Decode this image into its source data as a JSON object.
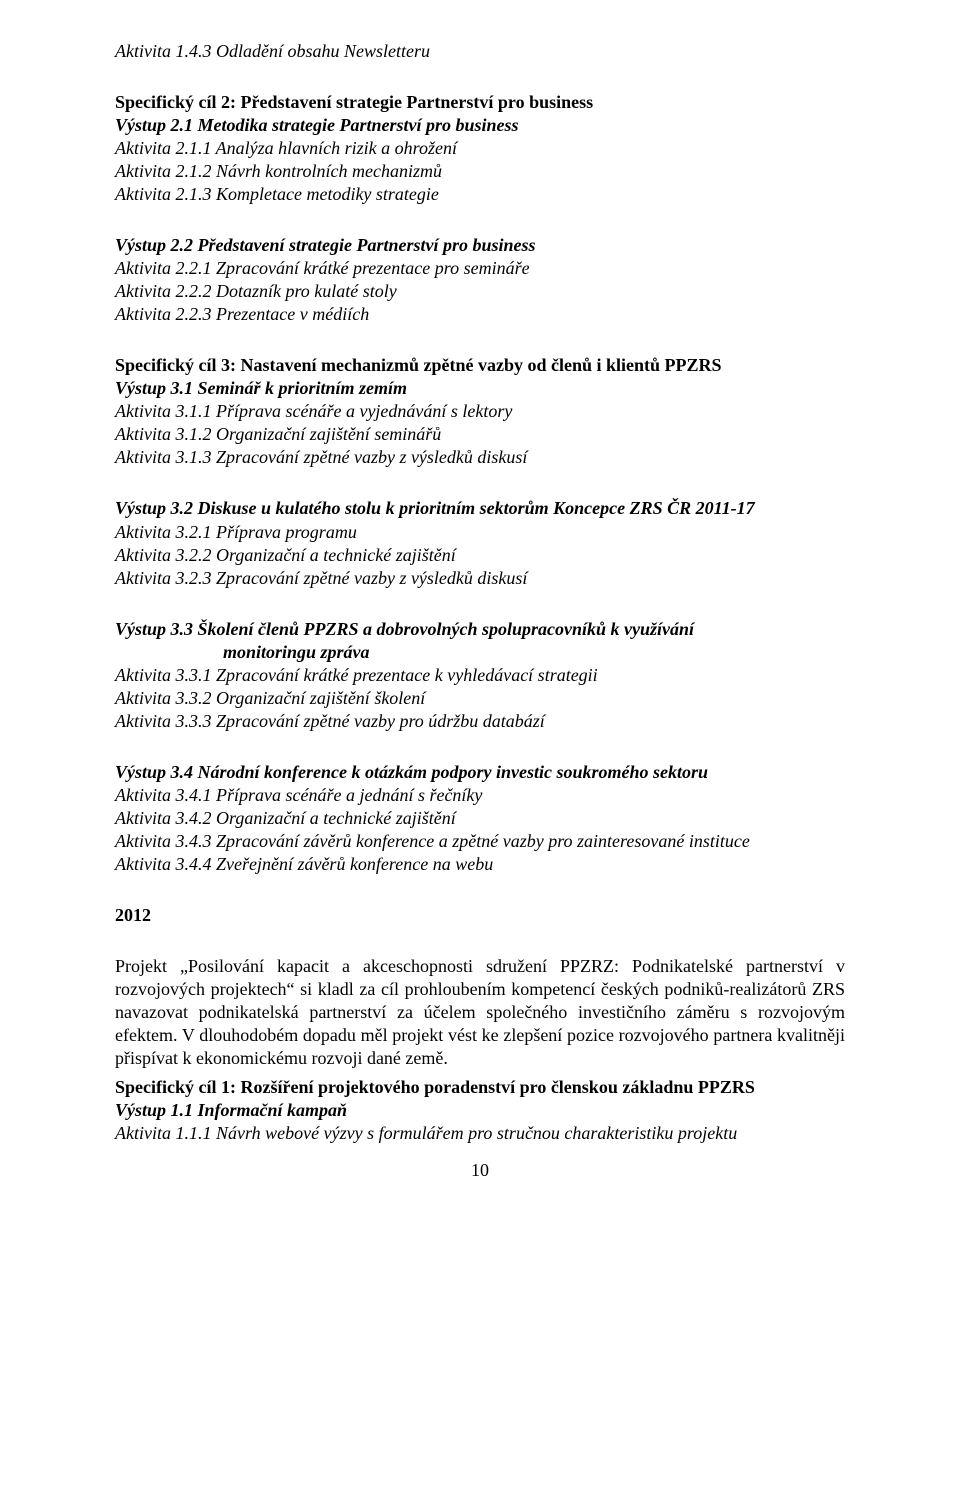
{
  "blocks": [
    {
      "lines": [
        {
          "cls": "italic",
          "text": "Aktivita 1.4.3 Odladění obsahu Newsletteru"
        }
      ]
    },
    {
      "lines": [
        {
          "cls": "bold",
          "text": "Specifický cíl 2: Představení strategie Partnerství pro business"
        },
        {
          "cls": "bold-italic",
          "text": "Výstup 2.1 Metodika strategie Partnerství pro business"
        },
        {
          "cls": "italic",
          "text": "Aktivita 2.1.1 Analýza hlavních rizik a ohrožení"
        },
        {
          "cls": "italic",
          "text": "Aktivita 2.1.2 Návrh kontrolních mechanizmů"
        },
        {
          "cls": "italic",
          "text": "Aktivita 2.1.3 Kompletace metodiky strategie"
        }
      ]
    },
    {
      "lines": [
        {
          "cls": "bold-italic",
          "text": "Výstup 2.2 Představení strategie Partnerství pro business"
        },
        {
          "cls": "italic",
          "text": "Aktivita 2.2.1 Zpracování krátké prezentace pro semináře"
        },
        {
          "cls": "italic",
          "text": "Aktivita 2.2.2 Dotazník pro kulaté stoly"
        },
        {
          "cls": "italic",
          "text": "Aktivita 2.2.3 Prezentace v médiích"
        }
      ]
    },
    {
      "lines": [
        {
          "cls": "bold",
          "text": "Specifický cíl 3: Nastavení mechanizmů zpětné vazby od členů i klientů PPZRS"
        },
        {
          "cls": "bold-italic",
          "text": "Výstup 3.1 Seminář k prioritním zemím"
        },
        {
          "cls": "italic",
          "text": "Aktivita 3.1.1 Příprava scénáře a vyjednávání s lektory"
        },
        {
          "cls": "italic",
          "text": "Aktivita 3.1.2 Organizační zajištění seminářů"
        },
        {
          "cls": "italic",
          "text": "Aktivita 3.1.3 Zpracování zpětné vazby z výsledků diskusí"
        }
      ]
    },
    {
      "lines": [
        {
          "cls": "bold-italic",
          "text": "Výstup 3.2 Diskuse u kulatého stolu k prioritním sektorům Koncepce ZRS ČR 2011-17"
        },
        {
          "cls": "italic",
          "text": "Aktivita 3.2.1 Příprava programu"
        },
        {
          "cls": "italic",
          "text": "Aktivita 3.2.2 Organizační a technické zajištění"
        },
        {
          "cls": "italic",
          "text": "Aktivita 3.2.3 Zpracování zpětné vazby z výsledků diskusí"
        }
      ]
    },
    {
      "lines": [
        {
          "cls": "bold-italic justify",
          "text": "Výstup 3.3 Školení členů PPZRS a dobrovolných spolupracovníků k využívání"
        },
        {
          "cls": "bold-italic pad-left",
          "text": "monitoringu zpráva"
        },
        {
          "cls": "italic",
          "text": "Aktivita 3.3.1 Zpracování krátké prezentace k vyhledávací strategii"
        },
        {
          "cls": "italic",
          "text": "Aktivita 3.3.2 Organizační zajištění školení"
        },
        {
          "cls": "italic",
          "text": "Aktivita 3.3.3 Zpracování zpětné vazby pro údržbu databází"
        }
      ]
    },
    {
      "lines": [
        {
          "cls": "bold-italic",
          "text": "Výstup 3.4 Národní konference k otázkám podpory investic soukromého sektoru"
        },
        {
          "cls": "italic",
          "text": "Aktivita 3.4.1 Příprava scénáře a jednání s řečníky"
        },
        {
          "cls": "italic",
          "text": "Aktivita 3.4.2 Organizační a technické zajištění"
        },
        {
          "cls": "italic",
          "text": "Aktivita 3.4.3 Zpracování závěrů konference a zpětné vazby pro zainteresované instituce"
        },
        {
          "cls": "italic",
          "text": "Aktivita 3.4.4 Zveřejnění závěrů konference na webu"
        }
      ]
    },
    {
      "lines": [
        {
          "cls": "bold",
          "text": "2012"
        }
      ]
    }
  ],
  "paragraph_2012": "Projekt „Posilování kapacit a akceschopnosti sdružení PPZRZ: Podnikatelské partnerství v rozvojových projektech“ si kladl za cíl prohloubením kompetencí českých podniků-realizátorů ZRS navazovat podnikatelská partnerství za účelem společného investičního záměru s rozvojovým efektem. V dlouhodobém dopadu měl projekt vést ke zlepšení pozice rozvojového partnera kvalitněji přispívat k ekonomickému rozvoji dané země.",
  "final_block": {
    "lines": [
      {
        "cls": "bold",
        "text": "Specifický cíl 1: Rozšíření projektového poradenství pro členskou základnu PPZRS"
      },
      {
        "cls": "bold-italic",
        "text": "Výstup 1.1 Informační kampaň"
      },
      {
        "cls": "italic",
        "text": "Aktivita 1.1.1 Návrh webové výzvy s formulářem pro stručnou charakteristiku projektu"
      }
    ]
  },
  "page_number": "10"
}
